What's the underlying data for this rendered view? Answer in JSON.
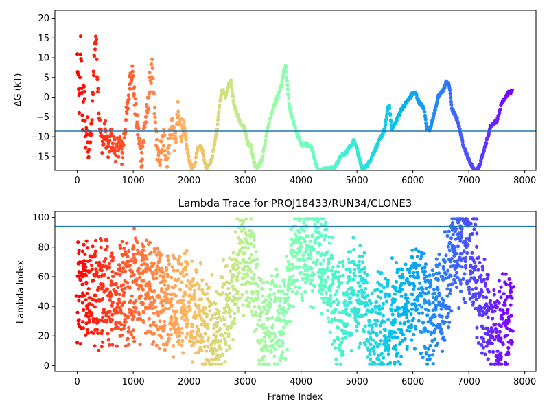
{
  "colors": {
    "ref_line": "#1f77b4",
    "axes": "#000000",
    "background": "#ffffff"
  },
  "chart_data": [
    {
      "type": "scatter",
      "title": "",
      "xlabel": "",
      "ylabel": "ΔG (kT)",
      "xlim": [
        -400,
        8200
      ],
      "ylim": [
        -18.5,
        22
      ],
      "xticks": [
        "0",
        "1000",
        "2000",
        "3000",
        "4000",
        "5000",
        "6000",
        "7000",
        "8000"
      ],
      "yticks": [
        "−15",
        "−10",
        "−5",
        "0",
        "5",
        "10",
        "15",
        "20"
      ],
      "xtick_values": [
        0,
        1000,
        2000,
        3000,
        4000,
        5000,
        6000,
        7000,
        8000
      ],
      "ytick_values": [
        -15,
        -10,
        -5,
        0,
        5,
        10,
        15,
        20
      ],
      "hline": -8.6,
      "colormap": "rainbow (frame index: red at 0 → violet at 7780)",
      "series": [
        {
          "values_xy": [
            [
              0,
              10
            ],
            [
              20,
              2
            ],
            [
              40,
              -3
            ],
            [
              60,
              14
            ],
            [
              80,
              3
            ],
            [
              100,
              -9
            ],
            [
              120,
              5
            ],
            [
              150,
              -12
            ],
            [
              180,
              -7
            ],
            [
              200,
              -15
            ],
            [
              230,
              -10
            ],
            [
              260,
              -8
            ],
            [
              290,
              7
            ],
            [
              310,
              12
            ],
            [
              330,
              16
            ],
            [
              360,
              6
            ],
            [
              380,
              -2
            ],
            [
              420,
              -10
            ],
            [
              460,
              -12
            ],
            [
              500,
              -8
            ],
            [
              550,
              -14
            ],
            [
              600,
              -10
            ],
            [
              650,
              -12
            ],
            [
              700,
              -14
            ],
            [
              760,
              -11
            ],
            [
              800,
              -15
            ],
            [
              850,
              -8
            ],
            [
              900,
              -3
            ],
            [
              940,
              5
            ],
            [
              980,
              7
            ],
            [
              1020,
              0
            ],
            [
              1060,
              -6
            ],
            [
              1100,
              -10
            ],
            [
              1150,
              -16
            ],
            [
              1200,
              -7
            ],
            [
              1250,
              -4
            ],
            [
              1300,
              4
            ],
            [
              1340,
              7
            ],
            [
              1380,
              -3
            ],
            [
              1420,
              -12
            ],
            [
              1460,
              -17
            ],
            [
              1500,
              -13
            ],
            [
              1550,
              -10
            ],
            [
              1600,
              -16
            ],
            [
              1650,
              -10
            ],
            [
              1700,
              -6
            ],
            [
              1750,
              -12
            ],
            [
              1800,
              -4
            ],
            [
              1850,
              -9
            ],
            [
              1900,
              -6
            ],
            [
              1950,
              -12
            ],
            [
              2000,
              -16
            ],
            [
              2050,
              -18
            ],
            [
              2100,
              -17
            ],
            [
              2150,
              -13
            ],
            [
              2200,
              -12
            ],
            [
              2250,
              -14
            ],
            [
              2300,
              -18
            ],
            [
              2400,
              -16
            ],
            [
              2500,
              -8
            ],
            [
              2550,
              -1
            ],
            [
              2600,
              2
            ],
            [
              2650,
              0
            ],
            [
              2700,
              3
            ],
            [
              2750,
              4
            ],
            [
              2800,
              -2
            ],
            [
              2900,
              -6
            ],
            [
              3000,
              -8
            ],
            [
              3050,
              -12
            ],
            [
              3100,
              -12
            ],
            [
              3150,
              -16
            ],
            [
              3200,
              -18
            ],
            [
              3300,
              -16
            ],
            [
              3400,
              -8
            ],
            [
              3500,
              -3
            ],
            [
              3600,
              1
            ],
            [
              3650,
              3
            ],
            [
              3700,
              7
            ],
            [
              3730,
              8
            ],
            [
              3760,
              2
            ],
            [
              3800,
              -3
            ],
            [
              3900,
              -8
            ],
            [
              4000,
              -12
            ],
            [
              4100,
              -12
            ],
            [
              4200,
              -13
            ],
            [
              4250,
              -16
            ],
            [
              4300,
              -18.5
            ],
            [
              4600,
              -18
            ],
            [
              4700,
              -15
            ],
            [
              4800,
              -14
            ],
            [
              4900,
              -12
            ],
            [
              4950,
              -11
            ],
            [
              5000,
              -13
            ],
            [
              5050,
              -16
            ],
            [
              5100,
              -18.5
            ],
            [
              5200,
              -17
            ],
            [
              5300,
              -14
            ],
            [
              5400,
              -11
            ],
            [
              5500,
              -8
            ],
            [
              5550,
              -3
            ],
            [
              5580,
              -2
            ],
            [
              5620,
              -8
            ],
            [
              5700,
              -6
            ],
            [
              5800,
              -3
            ],
            [
              5900,
              -1
            ],
            [
              6000,
              1
            ],
            [
              6050,
              1
            ],
            [
              6100,
              -1
            ],
            [
              6200,
              -3
            ],
            [
              6250,
              -8
            ],
            [
              6300,
              -8
            ],
            [
              6350,
              -6
            ],
            [
              6450,
              0
            ],
            [
              6550,
              2
            ],
            [
              6600,
              4
            ],
            [
              6650,
              3
            ],
            [
              6700,
              -3
            ],
            [
              6800,
              -6
            ],
            [
              6900,
              -12
            ],
            [
              7000,
              -16
            ],
            [
              7100,
              -18.5
            ],
            [
              7150,
              -18.5
            ],
            [
              7200,
              -17
            ],
            [
              7300,
              -12
            ],
            [
              7400,
              -7
            ],
            [
              7500,
              -6
            ],
            [
              7600,
              -1
            ],
            [
              7700,
              1
            ],
            [
              7780,
              1.5
            ]
          ]
        }
      ]
    },
    {
      "type": "scatter",
      "title": "Lambda Trace for PROJ18433/RUN34/CLONE3",
      "xlabel": "Frame Index",
      "ylabel": "Lambda Index",
      "xlim": [
        -400,
        8200
      ],
      "ylim": [
        -4,
        104
      ],
      "xticks": [
        "0",
        "1000",
        "2000",
        "3000",
        "4000",
        "5000",
        "6000",
        "7000",
        "8000"
      ],
      "yticks": [
        "0",
        "20",
        "40",
        "60",
        "80",
        "100"
      ],
      "xtick_values": [
        0,
        1000,
        2000,
        3000,
        4000,
        5000,
        6000,
        7000,
        8000
      ],
      "ytick_values": [
        0,
        20,
        40,
        60,
        80,
        100
      ],
      "hline": 94,
      "colormap": "rainbow (frame index: red at 0 → violet at 7780)",
      "series": [
        {
          "trend_xy": [
            [
              0,
              50
            ],
            [
              100,
              50
            ],
            [
              300,
              50
            ],
            [
              500,
              50
            ],
            [
              700,
              45
            ],
            [
              900,
              50
            ],
            [
              1100,
              55
            ],
            [
              1300,
              45
            ],
            [
              1500,
              45
            ],
            [
              1700,
              40
            ],
            [
              1900,
              45
            ],
            [
              2100,
              35
            ],
            [
              2300,
              25
            ],
            [
              2500,
              25
            ],
            [
              2700,
              40
            ],
            [
              2900,
              70
            ],
            [
              3100,
              70
            ],
            [
              3300,
              30
            ],
            [
              3500,
              25
            ],
            [
              3700,
              35
            ],
            [
              3900,
              80
            ],
            [
              4100,
              75
            ],
            [
              4300,
              80
            ],
            [
              4500,
              50
            ],
            [
              4700,
              35
            ],
            [
              4900,
              50
            ],
            [
              5100,
              45
            ],
            [
              5300,
              25
            ],
            [
              5500,
              30
            ],
            [
              5700,
              35
            ],
            [
              5900,
              40
            ],
            [
              6100,
              50
            ],
            [
              6300,
              30
            ],
            [
              6500,
              40
            ],
            [
              6700,
              75
            ],
            [
              6900,
              80
            ],
            [
              7100,
              70
            ],
            [
              7300,
              30
            ],
            [
              7500,
              20
            ],
            [
              7700,
              30
            ],
            [
              7780,
              40
            ]
          ],
          "spread": 30
        }
      ]
    }
  ]
}
